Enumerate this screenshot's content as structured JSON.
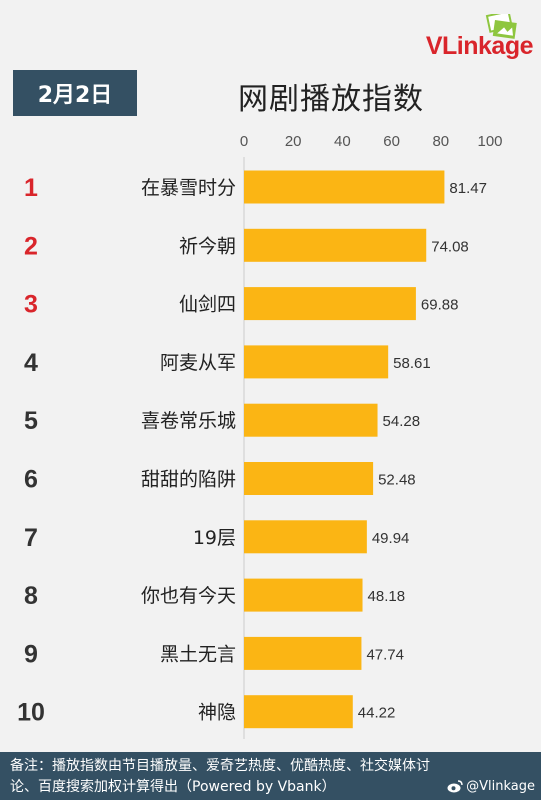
{
  "brand": {
    "name": "VLinkage"
  },
  "header": {
    "date": "2月2日",
    "title": "网剧播放指数"
  },
  "chart_data": {
    "type": "bar",
    "orientation": "horizontal",
    "title": "网剧播放指数",
    "ranks": [
      "1",
      "2",
      "3",
      "4",
      "5",
      "6",
      "7",
      "8",
      "9",
      "10"
    ],
    "categories": [
      "在暴雪时分",
      "祈今朝",
      "仙剑四",
      "阿麦从军",
      "喜卷常乐城",
      "甜甜的陷阱",
      "19层",
      "你也有今天",
      "黑土无言",
      "神隐"
    ],
    "values": [
      81.47,
      74.08,
      69.88,
      58.61,
      54.28,
      52.48,
      49.94,
      48.18,
      47.74,
      44.22
    ],
    "value_labels": [
      "81.47",
      "74.08",
      "69.88",
      "58.61",
      "54.28",
      "52.48",
      "49.94",
      "48.18",
      "47.74",
      "44.22"
    ],
    "xlim": [
      0,
      100
    ],
    "xticks": [
      "0",
      "20",
      "40",
      "60",
      "80",
      "100"
    ],
    "grid": false,
    "bar_color": "#fbb514",
    "top_rank_color": "#d9252b",
    "rank_color": "#333333"
  },
  "footer": {
    "line1": "备注：播放指数由节目播放量、爱奇艺热度、优酷热度、社交媒体讨",
    "line2": "论、百度搜索加权计算得出（Powered by Vbank）",
    "watermark": "@Vlinkage"
  }
}
